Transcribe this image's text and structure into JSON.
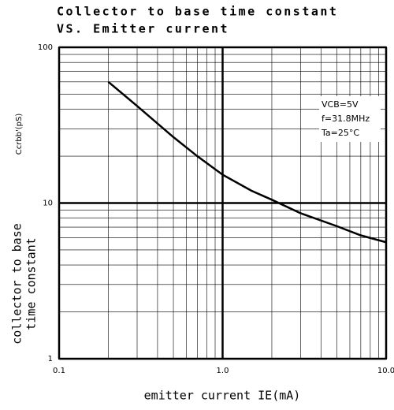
{
  "chart_data": {
    "type": "line",
    "title": [
      "Collector to base time constant",
      "VS. Emitter current"
    ],
    "ylabel": "Ccrbb'(pS)",
    "ylabel2": [
      "collector to base",
      "time constant"
    ],
    "xlabel": "emitter current IE(mA)",
    "annotation": [
      "VCB=5V",
      "f=31.8MHz",
      "Ta=25°C"
    ],
    "x": [
      0.2,
      0.3,
      0.5,
      0.7,
      1,
      1.5,
      2,
      3,
      5,
      7,
      10
    ],
    "values": [
      60,
      42,
      26.5,
      20,
      15.2,
      12,
      10.5,
      8.6,
      7.1,
      6.2,
      5.6
    ],
    "color": "#000000",
    "xlim": [
      0.1,
      10
    ],
    "ylim": [
      1,
      100
    ],
    "xticks": [
      0.1,
      {
        "value": 1,
        "label": "1.0"
      },
      {
        "value": 10,
        "label": "10.0"
      }
    ],
    "yticks": [
      1,
      10,
      100
    ],
    "xscale": "log",
    "yscale": "log",
    "grid": true,
    "minor_grid": true
  }
}
